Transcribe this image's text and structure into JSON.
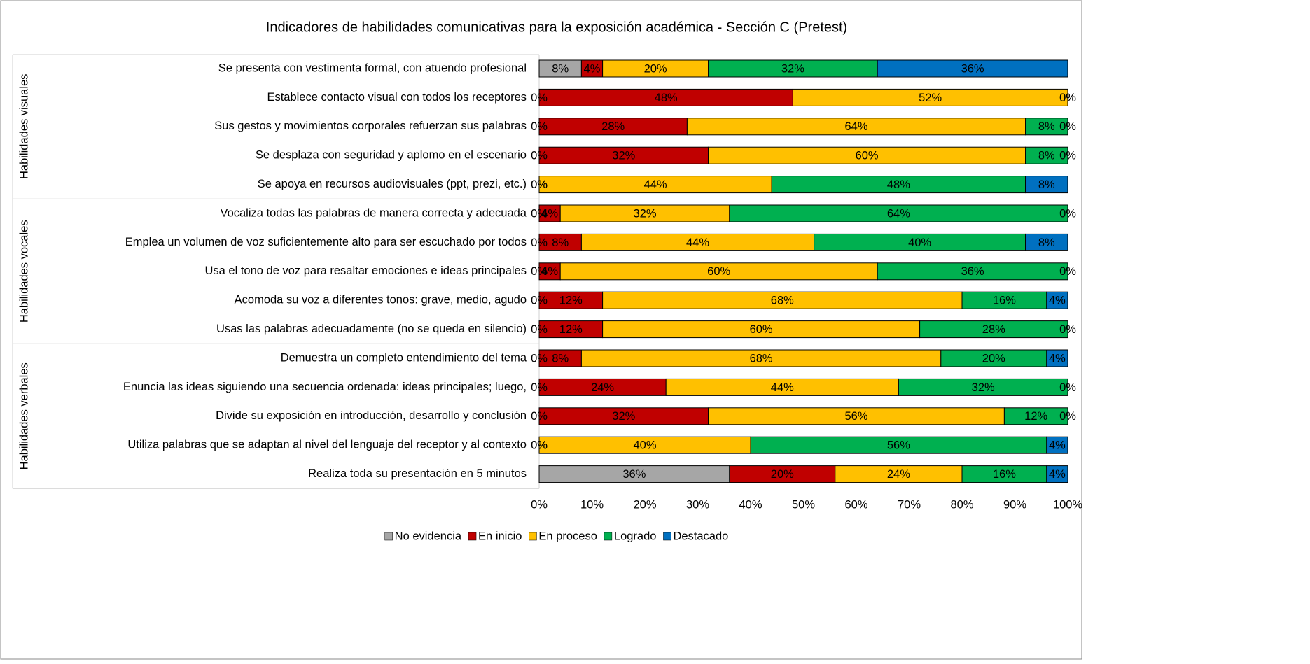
{
  "chart_data": {
    "type": "stacked-bar-horizontal",
    "title": "Indicadores de habilidades comunicativas para la exposición académica - Sección C (Pretest)",
    "categories": [
      "Se presenta con vestimenta formal, con atuendo profesional",
      "Establece contacto visual con todos los receptores",
      "Sus gestos y movimientos corporales refuerzan sus palabras",
      "Se desplaza con seguridad y aplomo en el escenario",
      "Se apoya en recursos audiovisuales (ppt, prezi, etc.)",
      "Vocaliza todas las palabras de manera correcta y adecuada",
      "Emplea un volumen de voz suficientemente alto para ser escuchado por todos",
      "Usa el tono de voz para resaltar emociones e ideas principales",
      "Acomoda su voz a diferentes tonos: grave, medio, agudo",
      "Usas las palabras adecuadamente (no se queda en silencio)",
      "Demuestra un completo entendimiento del tema",
      "Enuncia las ideas siguiendo una secuencia ordenada: ideas principales; luego,",
      "Divide su exposición en introducción, desarrollo y conclusión",
      "Utiliza palabras que se adaptan al nivel del lenguaje del receptor y al contexto",
      "Realiza toda su presentación en 5 minutos"
    ],
    "groups": [
      {
        "name": "Habilidades visuales",
        "size": 5
      },
      {
        "name": "Habilidades vocales",
        "size": 5
      },
      {
        "name": "Habilidades verbales",
        "size": 5
      }
    ],
    "series": [
      {
        "name": "No evidencia",
        "color": "#a6a6a6",
        "values": [
          8,
          0,
          0,
          0,
          0,
          0,
          0,
          0,
          0,
          0,
          0,
          0,
          0,
          0,
          36
        ],
        "value_labels": [
          "8%",
          "0%",
          "0%",
          "0%",
          "0%",
          "0%",
          "0%",
          "0%",
          "0%",
          "0%",
          "0%",
          "0%",
          "0%",
          "0%",
          "36%"
        ]
      },
      {
        "name": "En inicio",
        "color": "#c00000",
        "values": [
          4,
          48,
          28,
          32,
          0,
          4,
          8,
          4,
          12,
          12,
          8,
          24,
          32,
          0,
          20
        ],
        "value_labels": [
          "4%",
          "48%",
          "28%",
          "32%",
          "0%",
          "4%",
          "8%",
          "4%",
          "12%",
          "12%",
          "8%",
          "24%",
          "32%",
          "0%",
          "20%"
        ]
      },
      {
        "name": "En proceso",
        "color": "#ffc000",
        "values": [
          20,
          52,
          64,
          60,
          44,
          32,
          44,
          60,
          68,
          60,
          68,
          44,
          56,
          40,
          24
        ],
        "value_labels": [
          "20%",
          "52%",
          "64%",
          "60%",
          "44%",
          "32%",
          "44%",
          "60%",
          "68%",
          "60%",
          "68%",
          "44%",
          "56%",
          "40%",
          "24%"
        ]
      },
      {
        "name": "Logrado",
        "color": "#00b050",
        "values": [
          32,
          0,
          8,
          8,
          48,
          64,
          40,
          36,
          16,
          28,
          20,
          32,
          12,
          56,
          16
        ],
        "value_labels": [
          "32%",
          "0%",
          "8%",
          "8%",
          "48%",
          "64%",
          "40%",
          "36%",
          "16%",
          "28%",
          "20%",
          "32%",
          "12%",
          "56%",
          "16%"
        ]
      },
      {
        "name": "Destacado",
        "color": "#0070c0",
        "values": [
          36,
          0,
          0,
          0,
          8,
          0,
          8,
          0,
          4,
          0,
          4,
          0,
          0,
          4,
          4
        ],
        "value_labels": [
          "36%",
          "0%",
          "0%",
          "0%",
          "8%",
          "0%",
          "8%",
          "0%",
          "4%",
          "0%",
          "4%",
          "0%",
          "0%",
          "4%",
          "4%"
        ]
      }
    ],
    "xlim": [
      0,
      100
    ],
    "xticks": [
      {
        "value": 0,
        "label": "0%"
      },
      {
        "value": 10,
        "label": "10%"
      },
      {
        "value": 20,
        "label": "20%"
      },
      {
        "value": 30,
        "label": "30%"
      },
      {
        "value": 40,
        "label": "40%"
      },
      {
        "value": 50,
        "label": "50%"
      },
      {
        "value": 60,
        "label": "60%"
      },
      {
        "value": 70,
        "label": "70%"
      },
      {
        "value": 80,
        "label": "80%"
      },
      {
        "value": 90,
        "label": "90%"
      },
      {
        "value": 100,
        "label": "100%"
      }
    ],
    "legend": "bottom"
  }
}
